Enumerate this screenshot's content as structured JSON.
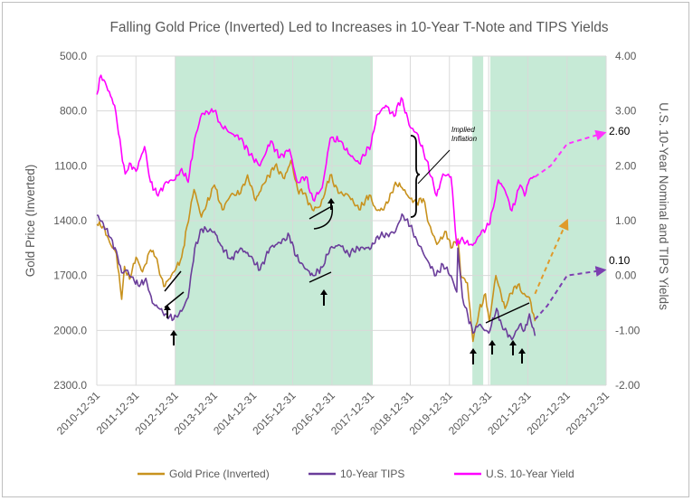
{
  "chart_data": {
    "type": "line",
    "title": "Falling Gold Price (Inverted) Led to Increases in 10-Year T-Note and TIPS Yields",
    "ylabel_left": "Gold Price (Inverted)",
    "ylabel_right": "U.S. 10-Year Nominal and TIPS Yields",
    "y_left_inverted": true,
    "y_left_range": [
      500,
      2300
    ],
    "y_left_ticks": [
      "500.0",
      "800.0",
      "1100.0",
      "1400.0",
      "1700.0",
      "2000.0",
      "2300.0"
    ],
    "y_right_range": [
      -2.0,
      4.0
    ],
    "y_right_ticks": [
      "4.00",
      "3.00",
      "2.00",
      "1.00",
      "0.00",
      "-1.00",
      "-2.00"
    ],
    "x_range": [
      "2010-12-31",
      "2023-12-31"
    ],
    "x_ticks": [
      "2010-12-31",
      "2011-12-31",
      "2012-12-31",
      "2013-12-31",
      "2014-12-31",
      "2015-12-31",
      "2016-12-31",
      "2017-12-31",
      "2018-12-31",
      "2019-12-31",
      "2020-12-31",
      "2021-12-31",
      "2022-12-31",
      "2023-12-31"
    ],
    "grid": true,
    "legend_position": "bottom",
    "shaded_periods": [
      {
        "start": "2013-01-01",
        "end": "2018-01-15"
      },
      {
        "start": "2020-08-01",
        "end": "2020-11-10"
      },
      {
        "start": "2021-01-15",
        "end": "2023-12-31"
      }
    ],
    "series": [
      {
        "name": "Gold Price (Inverted)",
        "axis": "left",
        "color": "#c8921e",
        "x": [
          "2011-01-01",
          "2011-03-01",
          "2011-05-01",
          "2011-07-01",
          "2011-08-20",
          "2011-09-15",
          "2011-11-01",
          "2012-01-01",
          "2012-03-01",
          "2012-05-15",
          "2012-07-01",
          "2012-09-15",
          "2012-11-01",
          "2013-01-01",
          "2013-03-01",
          "2013-04-20",
          "2013-06-25",
          "2013-09-01",
          "2013-12-31",
          "2014-03-15",
          "2014-06-01",
          "2014-09-01",
          "2014-11-05",
          "2015-01-20",
          "2015-04-01",
          "2015-07-20",
          "2015-10-15",
          "2015-12-15",
          "2016-02-15",
          "2016-04-15",
          "2016-07-01",
          "2016-09-15",
          "2016-12-15",
          "2017-03-01",
          "2017-06-01",
          "2017-09-10",
          "2017-12-15",
          "2018-02-15",
          "2018-04-15",
          "2018-06-15",
          "2018-08-15",
          "2018-10-15",
          "2018-12-31",
          "2019-03-01",
          "2019-05-01",
          "2019-06-25",
          "2019-09-05",
          "2019-12-01",
          "2020-01-15",
          "2020-03-20",
          "2020-04-15",
          "2020-06-15",
          "2020-08-07",
          "2020-10-01",
          "2020-12-01",
          "2021-01-05",
          "2021-03-08",
          "2021-06-01",
          "2021-07-15",
          "2021-09-30",
          "2021-11-15",
          "2022-01-15",
          "2022-03-08"
        ],
        "y": [
          1420,
          1430,
          1520,
          1580,
          1830,
          1650,
          1720,
          1600,
          1680,
          1560,
          1600,
          1760,
          1720,
          1670,
          1600,
          1430,
          1230,
          1380,
          1205,
          1340,
          1260,
          1250,
          1150,
          1290,
          1200,
          1100,
          1170,
          1070,
          1230,
          1250,
          1340,
          1320,
          1150,
          1250,
          1260,
          1340,
          1260,
          1340,
          1340,
          1290,
          1190,
          1220,
          1280,
          1300,
          1280,
          1420,
          1530,
          1460,
          1550,
          1500,
          1700,
          1740,
          2060,
          1900,
          1800,
          1950,
          1700,
          1880,
          1800,
          1750,
          1800,
          1820,
          1950
        ]
      },
      {
        "name": "10-Year TIPS",
        "axis": "right",
        "color": "#6a3d9a",
        "x": [
          "2011-01-01",
          "2011-03-01",
          "2011-05-01",
          "2011-07-01",
          "2011-08-20",
          "2011-10-01",
          "2011-12-15",
          "2012-02-01",
          "2012-04-01",
          "2012-06-01",
          "2012-08-01",
          "2012-10-01",
          "2012-12-15",
          "2013-03-01",
          "2013-05-01",
          "2013-07-01",
          "2013-09-05",
          "2013-12-31",
          "2014-03-01",
          "2014-06-01",
          "2014-09-01",
          "2014-12-01",
          "2015-03-01",
          "2015-06-01",
          "2015-09-01",
          "2015-12-01",
          "2016-02-01",
          "2016-04-15",
          "2016-07-08",
          "2016-10-01",
          "2016-12-15",
          "2017-03-15",
          "2017-06-01",
          "2017-09-01",
          "2017-12-31",
          "2018-03-01",
          "2018-06-01",
          "2018-08-15",
          "2018-10-15",
          "2018-12-31",
          "2019-03-01",
          "2019-06-01",
          "2019-08-28",
          "2019-11-01",
          "2020-01-15",
          "2020-03-09",
          "2020-03-19",
          "2020-05-01",
          "2020-08-07",
          "2020-10-01",
          "2021-01-01",
          "2021-03-15",
          "2021-05-01",
          "2021-08-04",
          "2021-10-15",
          "2021-12-01",
          "2022-01-15",
          "2022-03-08"
        ],
        "y": [
          1.1,
          0.95,
          0.7,
          0.45,
          0.05,
          0.1,
          -0.1,
          -0.2,
          -0.05,
          -0.5,
          -0.6,
          -0.7,
          -0.8,
          -0.65,
          -0.4,
          0.5,
          0.85,
          0.8,
          0.55,
          0.3,
          0.5,
          0.35,
          0.1,
          0.5,
          0.6,
          0.72,
          0.35,
          0.15,
          0.0,
          0.15,
          0.5,
          0.55,
          0.4,
          0.5,
          0.5,
          0.72,
          0.75,
          0.8,
          1.12,
          0.9,
          0.65,
          0.3,
          0.0,
          0.2,
          0.0,
          -0.3,
          0.5,
          -0.4,
          -1.05,
          -0.9,
          -1.05,
          -0.6,
          -0.9,
          -1.17,
          -0.9,
          -1.0,
          -0.7,
          -1.1
        ]
      },
      {
        "name": "U.S. 10-Year Yield",
        "axis": "right",
        "color": "#ff00ff",
        "x": [
          "2011-01-01",
          "2011-02-08",
          "2011-04-01",
          "2011-06-15",
          "2011-08-15",
          "2011-09-22",
          "2011-11-01",
          "2012-01-01",
          "2012-03-20",
          "2012-05-15",
          "2012-07-24",
          "2012-10-01",
          "2012-12-31",
          "2013-03-01",
          "2013-05-01",
          "2013-07-01",
          "2013-09-05",
          "2013-12-31",
          "2014-03-01",
          "2014-06-01",
          "2014-09-01",
          "2014-12-01",
          "2015-03-01",
          "2015-06-10",
          "2015-09-01",
          "2015-12-01",
          "2016-02-11",
          "2016-05-01",
          "2016-07-08",
          "2016-10-01",
          "2016-12-15",
          "2017-03-15",
          "2017-06-15",
          "2017-09-08",
          "2017-12-31",
          "2018-02-21",
          "2018-05-17",
          "2018-08-01",
          "2018-10-08",
          "2018-12-31",
          "2019-03-01",
          "2019-06-01",
          "2019-09-03",
          "2019-11-01",
          "2020-01-15",
          "2020-03-09",
          "2020-04-15",
          "2020-08-04",
          "2020-10-15",
          "2020-12-31",
          "2021-02-15",
          "2021-03-31",
          "2021-06-01",
          "2021-08-04",
          "2021-10-21",
          "2021-12-01",
          "2022-01-15",
          "2022-03-08"
        ],
        "y": [
          3.3,
          3.65,
          3.45,
          3.1,
          2.3,
          1.85,
          2.05,
          1.9,
          2.35,
          1.7,
          1.45,
          1.7,
          1.75,
          1.95,
          1.7,
          2.5,
          2.95,
          3.0,
          2.75,
          2.6,
          2.5,
          2.2,
          2.0,
          2.45,
          2.15,
          2.3,
          1.7,
          1.8,
          1.38,
          1.6,
          2.5,
          2.45,
          2.2,
          2.05,
          2.4,
          2.92,
          3.1,
          2.9,
          3.24,
          2.7,
          2.6,
          2.1,
          1.45,
          1.85,
          1.8,
          0.55,
          0.65,
          0.55,
          0.75,
          0.92,
          1.25,
          1.74,
          1.55,
          1.18,
          1.65,
          1.45,
          1.75,
          1.8
        ]
      }
    ],
    "projections": [
      {
        "series": "Gold Price (Inverted)",
        "axis": "left",
        "color": "#e09a2b",
        "x": [
          "2022-03-08",
          "2022-08-01",
          "2023-01-01"
        ],
        "y": [
          1800,
          1600,
          1400
        ]
      },
      {
        "series": "10-Year TIPS",
        "axis": "right",
        "color": "#7b3fb0",
        "x": [
          "2022-03-08",
          "2022-07-01",
          "2023-01-01",
          "2023-12-15"
        ],
        "y": [
          -0.8,
          -0.55,
          0.0,
          0.1
        ]
      },
      {
        "series": "U.S. 10-Year Yield",
        "axis": "right",
        "color": "#ff33ff",
        "x": [
          "2022-03-08",
          "2022-08-01",
          "2023-01-01",
          "2023-12-15"
        ],
        "y": [
          1.8,
          2.0,
          2.4,
          2.6
        ]
      }
    ],
    "annotations": [
      {
        "text": "2.60",
        "series": "U.S. 10-Year Yield"
      },
      {
        "text": "0.10",
        "series": "10-Year TIPS"
      },
      {
        "text": "Implied Inflation"
      }
    ]
  }
}
